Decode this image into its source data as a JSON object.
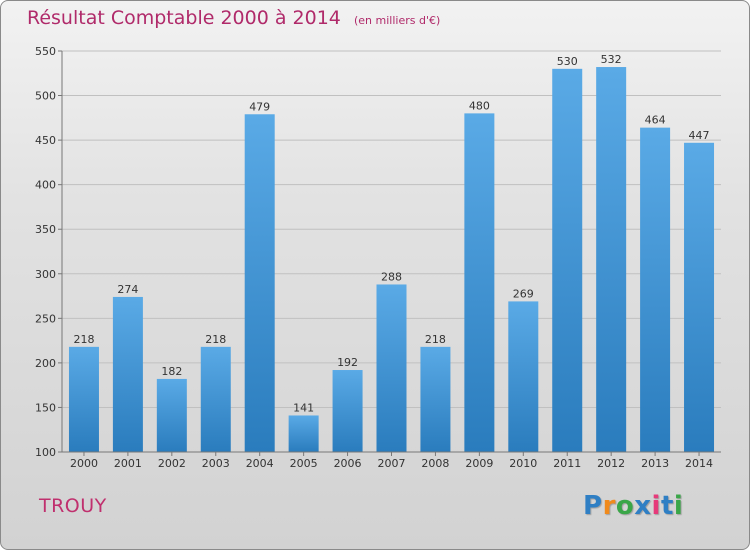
{
  "title": "Résultat Comptable 2000 à 2014",
  "subtitle": "(en milliers d'€)",
  "commune": "TROUY",
  "logo": {
    "letters": [
      "P",
      "r",
      "o",
      "x",
      "i",
      "t",
      "i"
    ],
    "colors": [
      "#2f7fc4",
      "#f08a1c",
      "#3aa648",
      "#2f7fc4",
      "#e63a7a",
      "#2f7fc4",
      "#3aa648"
    ]
  },
  "chart_data": {
    "type": "bar",
    "title": "Résultat Comptable 2000 à 2014",
    "subtitle": "(en milliers d'€)",
    "categories": [
      "2000",
      "2001",
      "2002",
      "2003",
      "2004",
      "2005",
      "2006",
      "2007",
      "2008",
      "2009",
      "2010",
      "2011",
      "2012",
      "2013",
      "2014"
    ],
    "values": [
      218,
      274,
      182,
      218,
      479,
      141,
      192,
      288,
      218,
      480,
      269,
      530,
      532,
      464,
      447
    ],
    "ylim": [
      100,
      550
    ],
    "yticks": [
      100,
      150,
      200,
      250,
      300,
      350,
      400,
      450,
      500,
      550
    ],
    "grid": true,
    "colors": {
      "bar_top": "#5aaae6",
      "bar_bottom": "#2a7cbd",
      "grid": "#c0c0c0",
      "axis": "#777777"
    }
  }
}
